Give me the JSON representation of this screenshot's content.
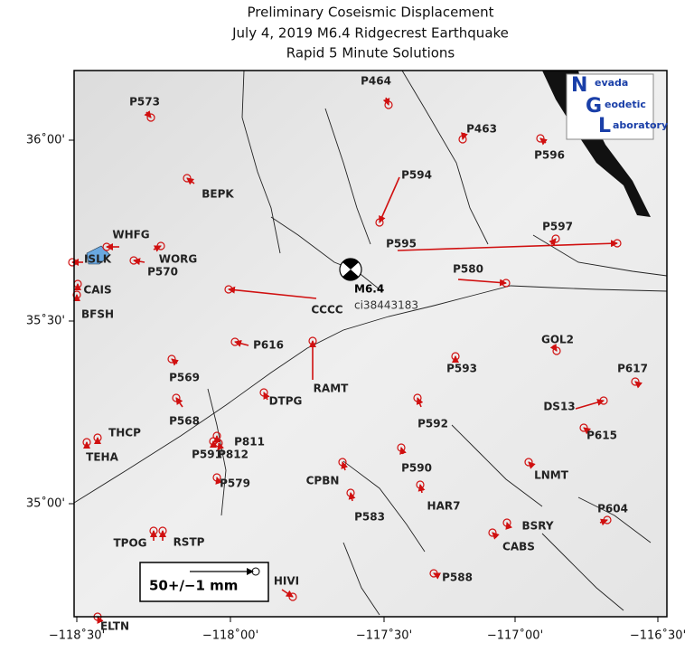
{
  "title": {
    "lines": [
      "Preliminary Coseismic Displacement",
      "July 4, 2019  M6.4 Ridgecrest Earthquake",
      "Rapid 5 Minute Solutions"
    ]
  },
  "axes": {
    "x_ticks": [
      "−118˚30'",
      "−118˚00'",
      "−117˚30'",
      "−117˚00'",
      "−116˚30'"
    ],
    "y_ticks": [
      "36˚00'",
      "35˚30'",
      "35˚00'"
    ]
  },
  "event": {
    "magnitude": "M6.4",
    "id": "ci38443183"
  },
  "legend": {
    "label": "50+/−1 mm"
  },
  "logo": {
    "lines": [
      {
        "initial": "N",
        "rest": "evada"
      },
      {
        "initial": "G",
        "rest": "eodetic"
      },
      {
        "initial": "L",
        "rest": "aboratory"
      }
    ]
  },
  "stations": [
    {
      "name": "P573"
    },
    {
      "name": "P464"
    },
    {
      "name": "P463"
    },
    {
      "name": "P596"
    },
    {
      "name": "BEPK"
    },
    {
      "name": "P594"
    },
    {
      "name": "WHFG"
    },
    {
      "name": "WORG"
    },
    {
      "name": "ISLK"
    },
    {
      "name": "P570"
    },
    {
      "name": "CAIS"
    },
    {
      "name": "BFSH"
    },
    {
      "name": "P597"
    },
    {
      "name": "P595"
    },
    {
      "name": "P580"
    },
    {
      "name": "CCCC"
    },
    {
      "name": "P616"
    },
    {
      "name": "RAMT"
    },
    {
      "name": "P593"
    },
    {
      "name": "GOL2"
    },
    {
      "name": "P617"
    },
    {
      "name": "P569"
    },
    {
      "name": "DTPG"
    },
    {
      "name": "P592"
    },
    {
      "name": "DS13"
    },
    {
      "name": "P568"
    },
    {
      "name": "THCP"
    },
    {
      "name": "P811"
    },
    {
      "name": "P615"
    },
    {
      "name": "TEHA"
    },
    {
      "name": "P591"
    },
    {
      "name": "P812"
    },
    {
      "name": "P590"
    },
    {
      "name": "CPBN"
    },
    {
      "name": "LNMT"
    },
    {
      "name": "P579"
    },
    {
      "name": "HAR7"
    },
    {
      "name": "P583"
    },
    {
      "name": "P604"
    },
    {
      "name": "BSRY"
    },
    {
      "name": "TPOG"
    },
    {
      "name": "RSTP"
    },
    {
      "name": "CABS"
    },
    {
      "name": "P588"
    },
    {
      "name": "HIVI"
    },
    {
      "name": "ELTN"
    }
  ]
}
